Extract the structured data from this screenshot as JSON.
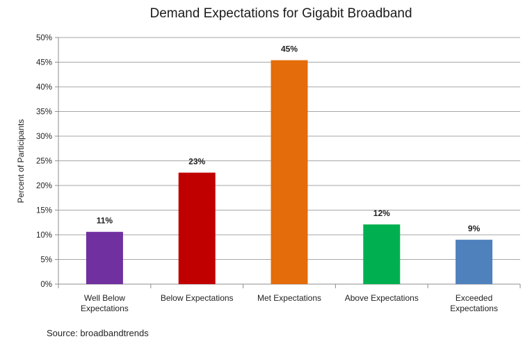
{
  "chart_data": {
    "type": "bar",
    "title": "Demand Expectations for Gigabit Broadband",
    "ylabel": "Percent of Participants",
    "xlabel": "",
    "categories": [
      "Well Below Expectations",
      "Below Expectations",
      "Met Expectations",
      "Above Expectations",
      "Exceeded Expectations"
    ],
    "category_lines": [
      [
        "Well Below",
        "Expectations"
      ],
      [
        "Below Expectations"
      ],
      [
        "Met Expectations"
      ],
      [
        "Above Expectations"
      ],
      [
        "Exceeded",
        "Expectations"
      ]
    ],
    "values": [
      11,
      23,
      45,
      12,
      9
    ],
    "bar_heights": [
      10.6,
      22.6,
      45.4,
      12.1,
      9.0
    ],
    "data_labels": [
      "11%",
      "23%",
      "45%",
      "12%",
      "9%"
    ],
    "colors": [
      "#7030a0",
      "#c00000",
      "#e46c0a",
      "#00b050",
      "#4f81bd"
    ],
    "ylim": [
      0,
      50
    ],
    "yticks": [
      "0%",
      "5%",
      "10%",
      "15%",
      "20%",
      "25%",
      "30%",
      "35%",
      "40%",
      "45%",
      "50%"
    ],
    "grid": true,
    "legend": "none"
  },
  "source": "Source:  broadbandtrends"
}
